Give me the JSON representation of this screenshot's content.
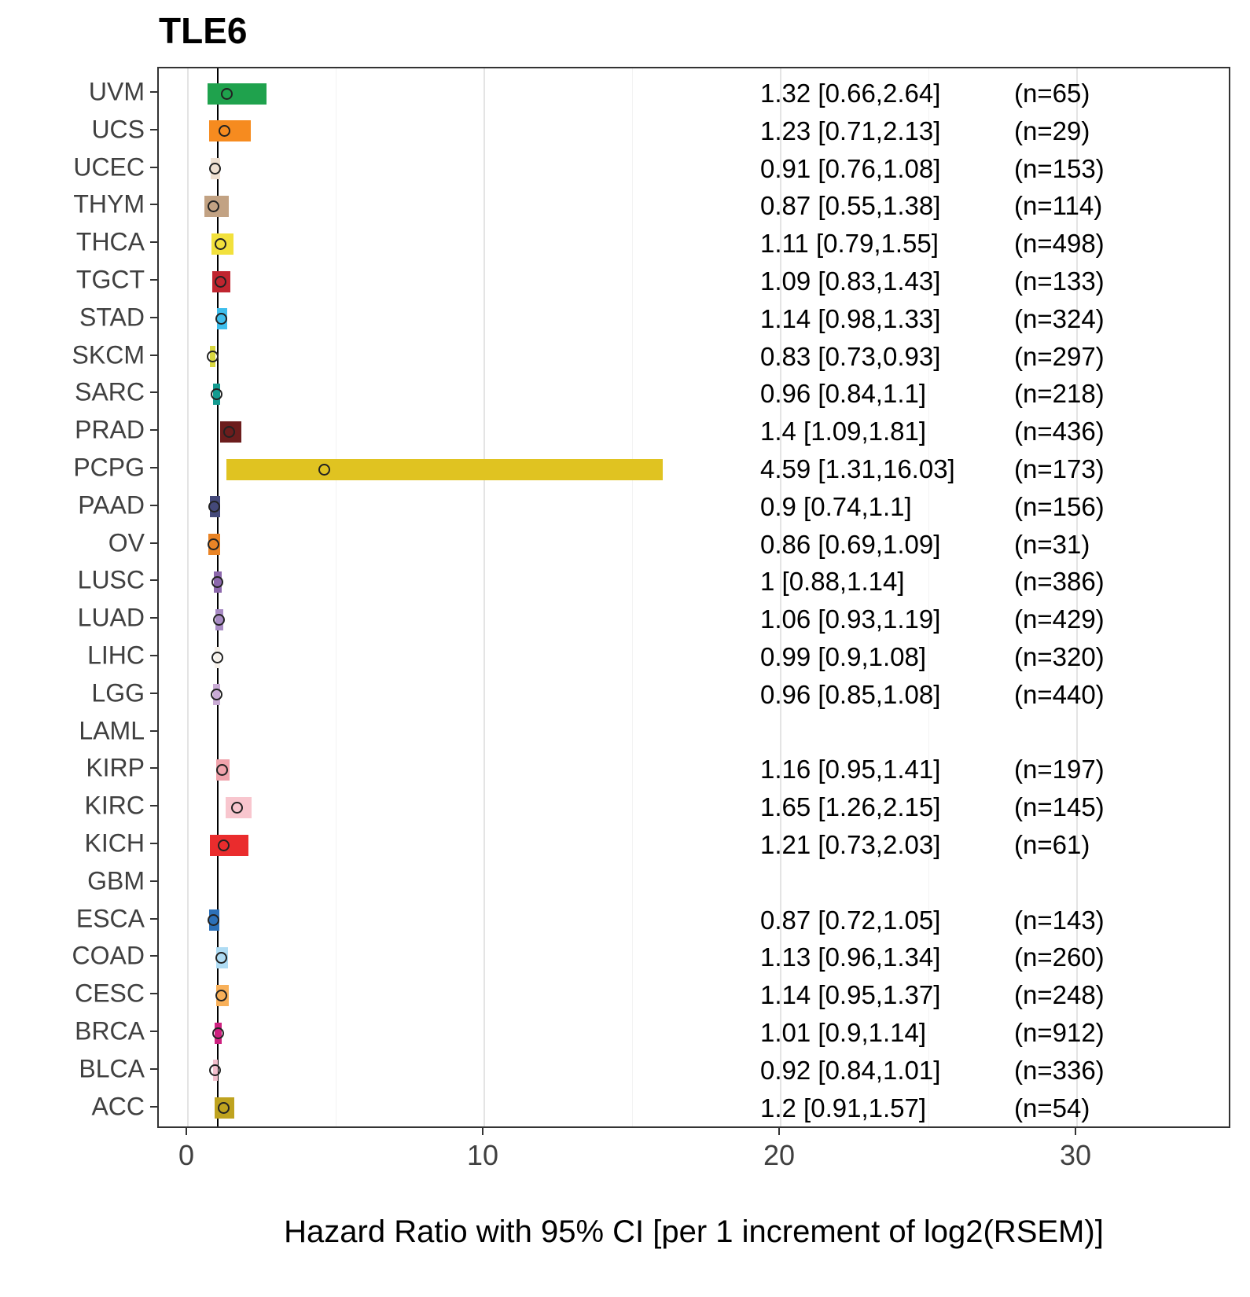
{
  "title": "TLE6",
  "xlabel": "Hazard Ratio with 95% CI [per 1 increment of log2(RSEM)]",
  "chart_data": {
    "type": "forest",
    "title": "TLE6",
    "xlabel": "Hazard Ratio with 95% CI [per 1 increment of log2(RSEM)]",
    "x_ticks": [
      0,
      10,
      20,
      30
    ],
    "x_minor_ticks": [
      5,
      15,
      25
    ],
    "xlim": [
      -0.98,
      35.2
    ],
    "reference_line": 1,
    "grid": "vertical-only",
    "legend": "none",
    "rows": [
      {
        "label": "UVM",
        "hr": 1.32,
        "lo": 0.66,
        "hi": 2.64,
        "hr_text": "1.32 [0.66,2.64]",
        "n_text": "(n=65)",
        "color": "#1FA24D"
      },
      {
        "label": "UCS",
        "hr": 1.23,
        "lo": 0.71,
        "hi": 2.13,
        "hr_text": "1.23 [0.71,2.13]",
        "n_text": "(n=29)",
        "color": "#F68B1F"
      },
      {
        "label": "UCEC",
        "hr": 0.91,
        "lo": 0.76,
        "hi": 1.08,
        "hr_text": "0.91 [0.76,1.08]",
        "n_text": "(n=153)",
        "color": "#EFE0D1"
      },
      {
        "label": "THYM",
        "hr": 0.87,
        "lo": 0.55,
        "hi": 1.38,
        "hr_text": "0.87 [0.55,1.38]",
        "n_text": "(n=114)",
        "color": "#C2A283"
      },
      {
        "label": "THCA",
        "hr": 1.11,
        "lo": 0.79,
        "hi": 1.55,
        "hr_text": "1.11 [0.79,1.55]",
        "n_text": "(n=498)",
        "color": "#F2E13C"
      },
      {
        "label": "TGCT",
        "hr": 1.09,
        "lo": 0.83,
        "hi": 1.43,
        "hr_text": "1.09 [0.83,1.43]",
        "n_text": "(n=133)",
        "color": "#C0252F"
      },
      {
        "label": "STAD",
        "hr": 1.14,
        "lo": 0.98,
        "hi": 1.33,
        "hr_text": "1.14 [0.98,1.33]",
        "n_text": "(n=324)",
        "color": "#3FBEEC"
      },
      {
        "label": "SKCM",
        "hr": 0.83,
        "lo": 0.73,
        "hi": 0.93,
        "hr_text": "0.83 [0.73,0.93]",
        "n_text": "(n=297)",
        "color": "#D9D83F"
      },
      {
        "label": "SARC",
        "hr": 0.96,
        "lo": 0.84,
        "hi": 1.1,
        "hr_text": "0.96 [0.84,1.1]",
        "n_text": "(n=218)",
        "color": "#139B90"
      },
      {
        "label": "PRAD",
        "hr": 1.4,
        "lo": 1.09,
        "hi": 1.81,
        "hr_text": "1.4 [1.09,1.81]",
        "n_text": "(n=436)",
        "color": "#6C1D1D"
      },
      {
        "label": "PCPG",
        "hr": 4.59,
        "lo": 1.31,
        "hi": 16.03,
        "hr_text": "4.59 [1.31,16.03]",
        "n_text": "(n=173)",
        "color": "#E0C321"
      },
      {
        "label": "PAAD",
        "hr": 0.9,
        "lo": 0.74,
        "hi": 1.1,
        "hr_text": "0.9 [0.74,1.1]",
        "n_text": "(n=156)",
        "color": "#44497A"
      },
      {
        "label": "OV",
        "hr": 0.86,
        "lo": 0.69,
        "hi": 1.09,
        "hr_text": "0.86 [0.69,1.09]",
        "n_text": "(n=31)",
        "color": "#E98426"
      },
      {
        "label": "LUSC",
        "hr": 1.0,
        "lo": 0.88,
        "hi": 1.14,
        "hr_text": "1 [0.88,1.14]",
        "n_text": "(n=386)",
        "color": "#8C68AC"
      },
      {
        "label": "LUAD",
        "hr": 1.06,
        "lo": 0.93,
        "hi": 1.19,
        "hr_text": "1.06 [0.93,1.19]",
        "n_text": "(n=429)",
        "color": "#A88BC4"
      },
      {
        "label": "LIHC",
        "hr": 0.99,
        "lo": 0.9,
        "hi": 1.08,
        "hr_text": "0.99 [0.9,1.08]",
        "n_text": "(n=320)",
        "color": "#F6F1EA"
      },
      {
        "label": "LGG",
        "hr": 0.96,
        "lo": 0.85,
        "hi": 1.08,
        "hr_text": "0.96 [0.85,1.08]",
        "n_text": "(n=440)",
        "color": "#C9ABD5"
      },
      {
        "label": "LAML",
        "hr": null,
        "lo": null,
        "hi": null,
        "hr_text": "",
        "n_text": "",
        "color": null
      },
      {
        "label": "KIRP",
        "hr": 1.16,
        "lo": 0.95,
        "hi": 1.41,
        "hr_text": "1.16 [0.95,1.41]",
        "n_text": "(n=197)",
        "color": "#F0A3AC"
      },
      {
        "label": "KIRC",
        "hr": 1.65,
        "lo": 1.26,
        "hi": 2.15,
        "hr_text": "1.65 [1.26,2.15]",
        "n_text": "(n=145)",
        "color": "#F8C6CE"
      },
      {
        "label": "KICH",
        "hr": 1.21,
        "lo": 0.73,
        "hi": 2.03,
        "hr_text": "1.21 [0.73,2.03]",
        "n_text": "(n=61)",
        "color": "#EA2C2D"
      },
      {
        "label": "GBM",
        "hr": null,
        "lo": null,
        "hi": null,
        "hr_text": "",
        "n_text": "",
        "color": null
      },
      {
        "label": "ESCA",
        "hr": 0.87,
        "lo": 0.72,
        "hi": 1.05,
        "hr_text": "0.87 [0.72,1.05]",
        "n_text": "(n=143)",
        "color": "#2C70B8"
      },
      {
        "label": "COAD",
        "hr": 1.13,
        "lo": 0.96,
        "hi": 1.34,
        "hr_text": "1.13 [0.96,1.34]",
        "n_text": "(n=260)",
        "color": "#AFDCF4"
      },
      {
        "label": "CESC",
        "hr": 1.14,
        "lo": 0.95,
        "hi": 1.37,
        "hr_text": "1.14 [0.95,1.37]",
        "n_text": "(n=248)",
        "color": "#F8B059"
      },
      {
        "label": "BRCA",
        "hr": 1.01,
        "lo": 0.9,
        "hi": 1.14,
        "hr_text": "1.01 [0.9,1.14]",
        "n_text": "(n=912)",
        "color": "#CE2180"
      },
      {
        "label": "BLCA",
        "hr": 0.92,
        "lo": 0.84,
        "hi": 1.01,
        "hr_text": "0.92 [0.84,1.01]",
        "n_text": "(n=336)",
        "color": "#F2BFCD"
      },
      {
        "label": "ACC",
        "hr": 1.2,
        "lo": 0.91,
        "hi": 1.57,
        "hr_text": "1.2 [0.91,1.57]",
        "n_text": "(n=54)",
        "color": "#BFA31F"
      }
    ]
  }
}
